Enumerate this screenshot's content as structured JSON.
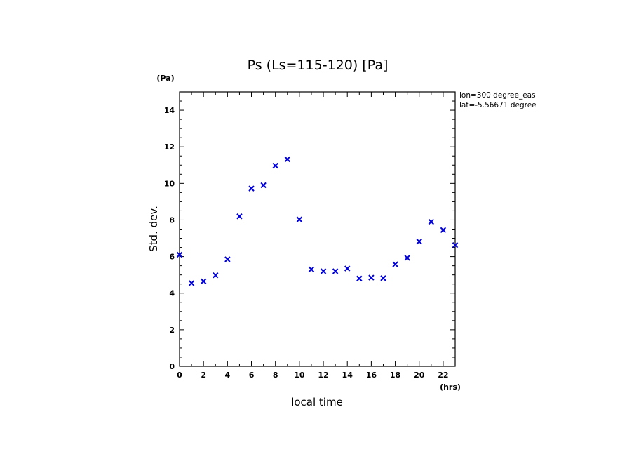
{
  "chart_data": {
    "type": "scatter",
    "title": "Ps (Ls=115-120) [Pa]",
    "xlabel": "local time",
    "ylabel": "Std. dev.",
    "x_unit": "(hrs)",
    "y_unit": "(Pa)",
    "xlim": [
      0,
      23
    ],
    "ylim": [
      0,
      15
    ],
    "x_ticks": [
      0,
      2,
      4,
      6,
      8,
      10,
      12,
      14,
      16,
      18,
      20,
      22
    ],
    "y_ticks": [
      0,
      2,
      4,
      6,
      8,
      10,
      12,
      14
    ],
    "marker": "x",
    "marker_color": "#0000dd",
    "annotations": [
      "lon=300 degree_eas",
      "lat=-5.56671 degree"
    ],
    "series": [
      {
        "name": "Std. dev.",
        "x": [
          0,
          1,
          2,
          3,
          4,
          5,
          6,
          7,
          8,
          9,
          10,
          11,
          12,
          13,
          14,
          15,
          16,
          17,
          18,
          19,
          20,
          21,
          22,
          23
        ],
        "y": [
          6.1,
          4.55,
          4.65,
          4.98,
          5.85,
          8.2,
          9.72,
          9.9,
          10.97,
          11.32,
          8.03,
          5.3,
          5.2,
          5.2,
          5.35,
          4.8,
          4.85,
          4.82,
          5.58,
          5.93,
          6.82,
          7.9,
          7.45,
          6.63
        ]
      }
    ]
  }
}
